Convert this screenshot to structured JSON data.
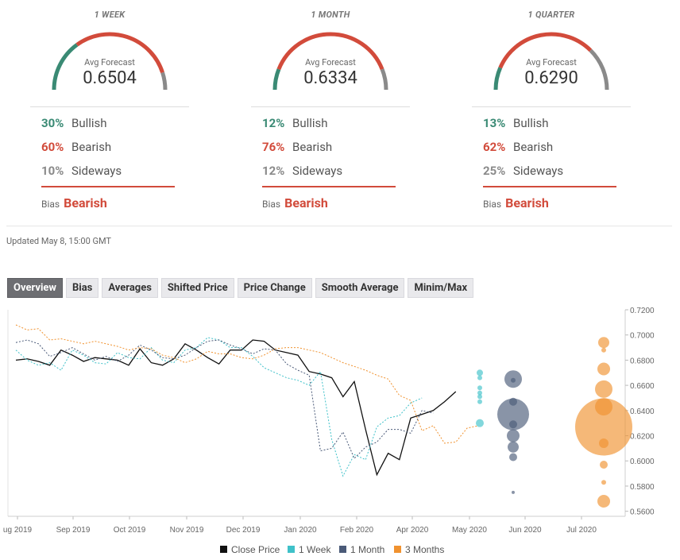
{
  "forecasts": [
    {
      "title": "1 WEEK",
      "avg_label": "Avg Forecast",
      "avg_value": "0.6504",
      "bullish": "30%",
      "bearish": "60%",
      "sideways": "10%",
      "bias_label": "Bias",
      "bias_value": "Bearish"
    },
    {
      "title": "1 MONTH",
      "avg_label": "Avg Forecast",
      "avg_value": "0.6334",
      "bullish": "12%",
      "bearish": "76%",
      "sideways": "12%",
      "bias_label": "Bias",
      "bias_value": "Bearish"
    },
    {
      "title": "1 QUARTER",
      "avg_label": "Avg Forecast",
      "avg_value": "0.6290",
      "bullish": "13%",
      "bearish": "62%",
      "sideways": "25%",
      "bias_label": "Bias",
      "bias_value": "Bearish"
    }
  ],
  "labels": {
    "bullish": "Bullish",
    "bearish": "Bearish",
    "sideways": "Sideways"
  },
  "colors": {
    "bullish": "#3a8a74",
    "bearish": "#d24b3b",
    "sideways": "#8a8a8a",
    "week": "#3fc1c9",
    "month": "#4a5a78",
    "quarter": "#f0922f",
    "close": "#111111"
  },
  "updated": "Updated May 8, 15:00 GMT",
  "tabs": [
    "Overview",
    "Bias",
    "Averages",
    "Shifted Price",
    "Price Change",
    "Smooth Average",
    "Minim/Max"
  ],
  "active_tab": "Overview",
  "chart_data": {
    "type": "line",
    "x_ticks": [
      "ug 2019",
      "Sep 2019",
      "Oct 2019",
      "Nov 2019",
      "Dec 2019",
      "Jan 2020",
      "Feb 2020",
      "Apr 2020",
      "May 2020",
      "Jun 2020",
      "Jul 2020"
    ],
    "y_ticks": [
      "0.7200",
      "0.7000",
      "0.6800",
      "0.6600",
      "0.6400",
      "0.6200",
      "0.6000",
      "0.5800",
      "0.5600"
    ],
    "ylim": [
      0.556,
      0.72
    ],
    "y_axis_side": "right",
    "legend": {
      "placement": "bottom",
      "entries": [
        "Close Price",
        "1 Week",
        "1 Month",
        "3 Months"
      ]
    },
    "series": [
      {
        "name": "Close Price",
        "style": "solid",
        "color": "#111111",
        "points": [
          [
            0,
            0.68
          ],
          [
            1,
            0.681
          ],
          [
            2,
            0.679
          ],
          [
            3,
            0.676
          ],
          [
            4,
            0.688
          ],
          [
            5,
            0.684
          ],
          [
            6,
            0.679
          ],
          [
            7,
            0.682
          ],
          [
            8,
            0.681
          ],
          [
            9,
            0.68
          ],
          [
            10,
            0.676
          ],
          [
            11,
            0.689
          ],
          [
            12,
            0.678
          ],
          [
            13,
            0.676
          ],
          [
            14,
            0.681
          ],
          [
            15,
            0.693
          ],
          [
            16,
            0.688
          ],
          [
            17,
            0.682
          ],
          [
            18,
            0.677
          ],
          [
            19,
            0.688
          ],
          [
            20,
            0.688
          ],
          [
            21,
            0.696
          ],
          [
            22,
            0.695
          ],
          [
            23,
            0.688
          ],
          [
            24,
            0.686
          ],
          [
            25,
            0.684
          ],
          [
            26,
            0.671
          ],
          [
            27,
            0.669
          ],
          [
            28,
            0.666
          ],
          [
            29,
            0.651
          ],
          [
            30,
            0.663
          ],
          [
            31,
            0.625
          ],
          [
            32,
            0.589
          ],
          [
            33,
            0.606
          ],
          [
            34,
            0.601
          ],
          [
            35,
            0.634
          ],
          [
            36,
            0.637
          ],
          [
            37,
            0.64
          ],
          [
            38,
            0.647
          ],
          [
            39,
            0.655
          ]
        ]
      },
      {
        "name": "1 Week",
        "style": "dotted",
        "color": "#3fc1c9",
        "points": [
          [
            0,
            0.688
          ],
          [
            1,
            0.68
          ],
          [
            2,
            0.676
          ],
          [
            3,
            0.678
          ],
          [
            4,
            0.672
          ],
          [
            5,
            0.688
          ],
          [
            6,
            0.684
          ],
          [
            7,
            0.678
          ],
          [
            8,
            0.677
          ],
          [
            9,
            0.686
          ],
          [
            10,
            0.682
          ],
          [
            11,
            0.681
          ],
          [
            12,
            0.69
          ],
          [
            13,
            0.68
          ],
          [
            14,
            0.678
          ],
          [
            15,
            0.688
          ],
          [
            16,
            0.69
          ],
          [
            17,
            0.698
          ],
          [
            18,
            0.696
          ],
          [
            19,
            0.69
          ],
          [
            20,
            0.69
          ],
          [
            21,
            0.683
          ],
          [
            22,
            0.674
          ],
          [
            23,
            0.67
          ],
          [
            24,
            0.666
          ],
          [
            25,
            0.664
          ],
          [
            26,
            0.66
          ],
          [
            27,
            0.671
          ],
          [
            28,
            0.617
          ],
          [
            29,
            0.588
          ],
          [
            30,
            0.605
          ],
          [
            31,
            0.601
          ],
          [
            32,
            0.627
          ],
          [
            33,
            0.634
          ],
          [
            34,
            0.636
          ],
          [
            35,
            0.646
          ],
          [
            36,
            0.65
          ]
        ]
      },
      {
        "name": "1 Month",
        "style": "dotted",
        "color": "#4a5a78",
        "points": [
          [
            0,
            0.694
          ],
          [
            1,
            0.696
          ],
          [
            2,
            0.693
          ],
          [
            3,
            0.683
          ],
          [
            4,
            0.686
          ],
          [
            5,
            0.69
          ],
          [
            6,
            0.685
          ],
          [
            7,
            0.68
          ],
          [
            8,
            0.683
          ],
          [
            9,
            0.679
          ],
          [
            10,
            0.684
          ],
          [
            11,
            0.692
          ],
          [
            12,
            0.688
          ],
          [
            13,
            0.682
          ],
          [
            14,
            0.681
          ],
          [
            15,
            0.684
          ],
          [
            16,
            0.69
          ],
          [
            17,
            0.695
          ],
          [
            18,
            0.696
          ],
          [
            19,
            0.692
          ],
          [
            20,
            0.689
          ],
          [
            21,
            0.685
          ],
          [
            22,
            0.689
          ],
          [
            23,
            0.688
          ],
          [
            24,
            0.677
          ],
          [
            25,
            0.672
          ],
          [
            26,
            0.668
          ],
          [
            27,
            0.608
          ],
          [
            28,
            0.61
          ],
          [
            29,
            0.623
          ],
          [
            30,
            0.602
          ],
          [
            31,
            0.611
          ],
          [
            32,
            0.615
          ],
          [
            33,
            0.625
          ],
          [
            34,
            0.625
          ],
          [
            35,
            0.622
          ],
          [
            36,
            0.64
          ],
          [
            37,
            0.638
          ]
        ]
      },
      {
        "name": "3 Months",
        "style": "dotted",
        "color": "#f0922f",
        "points": [
          [
            0,
            0.708
          ],
          [
            1,
            0.704
          ],
          [
            2,
            0.705
          ],
          [
            3,
            0.696
          ],
          [
            4,
            0.697
          ],
          [
            5,
            0.695
          ],
          [
            6,
            0.693
          ],
          [
            7,
            0.695
          ],
          [
            8,
            0.693
          ],
          [
            9,
            0.691
          ],
          [
            10,
            0.688
          ],
          [
            11,
            0.69
          ],
          [
            12,
            0.689
          ],
          [
            13,
            0.684
          ],
          [
            14,
            0.682
          ],
          [
            15,
            0.678
          ],
          [
            16,
            0.681
          ],
          [
            17,
            0.687
          ],
          [
            18,
            0.685
          ],
          [
            19,
            0.685
          ],
          [
            20,
            0.682
          ],
          [
            21,
            0.681
          ],
          [
            22,
            0.684
          ],
          [
            23,
            0.689
          ],
          [
            24,
            0.69
          ],
          [
            25,
            0.69
          ],
          [
            26,
            0.688
          ],
          [
            27,
            0.686
          ],
          [
            28,
            0.682
          ],
          [
            29,
            0.678
          ],
          [
            30,
            0.675
          ],
          [
            31,
            0.672
          ],
          [
            32,
            0.668
          ],
          [
            33,
            0.665
          ],
          [
            34,
            0.652
          ],
          [
            35,
            0.648
          ],
          [
            36,
            0.624
          ],
          [
            37,
            0.628
          ],
          [
            38,
            0.614
          ],
          [
            39,
            0.615
          ],
          [
            40,
            0.626
          ],
          [
            41,
            0.628
          ]
        ]
      }
    ],
    "forecast_bubbles": [
      {
        "series": "1 Week",
        "color": "#3fc1c9",
        "values": [
          0.67,
          0.666,
          0.658,
          0.654,
          0.651,
          0.647,
          0.63
        ]
      },
      {
        "series": "1 Month",
        "color": "#4a5a78",
        "values": [
          0.665,
          0.664,
          0.647,
          0.637,
          0.629,
          0.62,
          0.611,
          0.603,
          0.575
        ]
      },
      {
        "series": "3 Months",
        "color": "#f0922f",
        "values": [
          0.694,
          0.688,
          0.673,
          0.657,
          0.643,
          0.627,
          0.614,
          0.597,
          0.583,
          0.568
        ]
      }
    ]
  }
}
